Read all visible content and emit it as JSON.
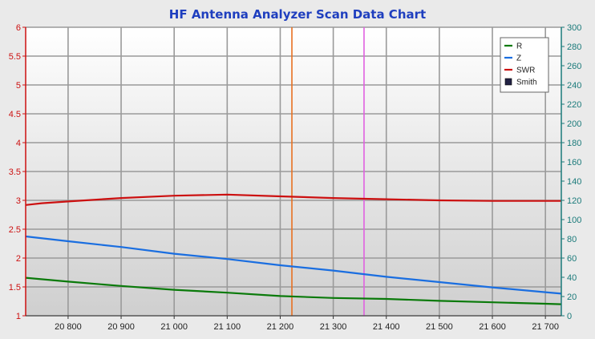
{
  "chart_data": {
    "type": "line",
    "title": "HF Antenna Analyzer Scan Data Chart",
    "x_range": [
      20720,
      21730
    ],
    "x_ticks": [
      20800,
      20900,
      21000,
      21100,
      21200,
      21300,
      21400,
      21500,
      21600,
      21700
    ],
    "x_tick_labels": [
      "20 800",
      "20 900",
      "21 000",
      "21 100",
      "21 200",
      "21 300",
      "21 400",
      "21 500",
      "21 600",
      "21 700"
    ],
    "y_left": {
      "range": [
        1,
        6
      ],
      "ticks": [
        1,
        1.5,
        2,
        2.5,
        3,
        3.5,
        4,
        4.5,
        5,
        5.5,
        6
      ],
      "tick_labels": [
        "1",
        "1.5",
        "2",
        "2.5",
        "3",
        "3.5",
        "4",
        "4.5",
        "5",
        "5.5",
        "6"
      ]
    },
    "y_right": {
      "range": [
        0,
        300
      ],
      "ticks": [
        0,
        20,
        40,
        60,
        80,
        100,
        120,
        140,
        160,
        180,
        200,
        220,
        240,
        260,
        280,
        300
      ],
      "tick_labels": [
        "0",
        "20",
        "40",
        "60",
        "80",
        "100",
        "120",
        "140",
        "160",
        "180",
        "200",
        "220",
        "240",
        "260",
        "280",
        "300"
      ]
    },
    "grid": true,
    "legend_position": "top-right",
    "markers": [
      {
        "x": 21222,
        "color": "#e87020"
      },
      {
        "x": 21358,
        "color": "#e060e0"
      }
    ],
    "series": [
      {
        "name": "R",
        "axis": "right",
        "color": "#0a7a0a",
        "x": [
          20720,
          20800,
          20900,
          21000,
          21100,
          21200,
          21300,
          21400,
          21500,
          21600,
          21700,
          21730
        ],
        "y": [
          39.5,
          35.5,
          31,
          27,
          24,
          20.5,
          18.5,
          17.5,
          15.5,
          14,
          12.5,
          12
        ]
      },
      {
        "name": "Z",
        "axis": "right",
        "color": "#1a6ee0",
        "x": [
          20720,
          20800,
          20900,
          21000,
          21100,
          21200,
          21300,
          21400,
          21500,
          21600,
          21700,
          21730
        ],
        "y": [
          82.5,
          77.5,
          71.5,
          64.5,
          59,
          52.5,
          47,
          40.5,
          35,
          29.5,
          24.5,
          23
        ]
      },
      {
        "name": "SWR",
        "axis": "left",
        "color": "#cc1010",
        "x": [
          20720,
          20750,
          20800,
          20900,
          21000,
          21100,
          21200,
          21300,
          21400,
          21500,
          21600,
          21700,
          21730
        ],
        "y": [
          2.92,
          2.95,
          2.98,
          3.04,
          3.08,
          3.1,
          3.07,
          3.04,
          3.02,
          3.0,
          2.99,
          2.99,
          2.99
        ]
      }
    ],
    "legend_items": [
      {
        "label": "R",
        "color": "#0a7a0a",
        "kind": "line"
      },
      {
        "label": "Z",
        "color": "#1a6ee0",
        "kind": "line"
      },
      {
        "label": "SWR",
        "color": "#cc1010",
        "kind": "line"
      },
      {
        "label": "Smith",
        "color": "#222244",
        "kind": "box"
      }
    ],
    "colors": {
      "title": "#1f3fbf",
      "left_axis": "#cc1010",
      "right_axis": "#1a7a7a",
      "x_axis": "#222222"
    }
  }
}
